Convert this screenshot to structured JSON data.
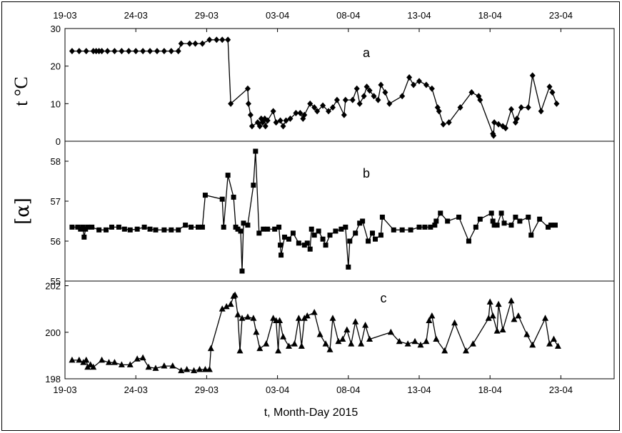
{
  "chart_data": {
    "type": "line",
    "xlabel": "t, Month-Day 2015",
    "x_ticks": [
      "19-03",
      "24-03",
      "29-03",
      "03-04",
      "08-04",
      "13-04",
      "18-04",
      "23-04"
    ],
    "x_tick_days": [
      0,
      5,
      10,
      15,
      20,
      25,
      30,
      35
    ],
    "x_range_days": [
      0,
      38.5
    ],
    "panels": [
      {
        "label": "a",
        "ylabel": "t °C",
        "ylim": [
          0,
          30
        ],
        "yticks": [
          0,
          10,
          20,
          30
        ],
        "marker": "diamond",
        "points": [
          [
            0.5,
            24
          ],
          [
            1,
            24
          ],
          [
            1.5,
            24
          ],
          [
            2,
            24
          ],
          [
            2.2,
            24
          ],
          [
            2.4,
            24
          ],
          [
            2.6,
            24
          ],
          [
            3,
            24
          ],
          [
            3.5,
            24
          ],
          [
            4,
            24
          ],
          [
            4.5,
            24
          ],
          [
            5,
            24
          ],
          [
            5.5,
            24
          ],
          [
            6,
            24
          ],
          [
            6.5,
            24
          ],
          [
            7,
            24
          ],
          [
            7.5,
            24
          ],
          [
            8,
            24
          ],
          [
            8.2,
            26
          ],
          [
            8.8,
            26
          ],
          [
            9.2,
            26
          ],
          [
            9.7,
            26
          ],
          [
            10.2,
            27
          ],
          [
            10.7,
            27
          ],
          [
            11.1,
            27
          ],
          [
            11.5,
            27
          ],
          [
            11.7,
            10
          ],
          [
            12.9,
            14
          ],
          [
            12.95,
            10
          ],
          [
            13.1,
            7
          ],
          [
            13.2,
            4
          ],
          [
            13.6,
            5
          ],
          [
            13.75,
            4
          ],
          [
            13.85,
            6
          ],
          [
            13.95,
            5
          ],
          [
            14.1,
            6
          ],
          [
            14.15,
            4
          ],
          [
            14.3,
            5.5
          ],
          [
            14.7,
            8
          ],
          [
            14.9,
            5
          ],
          [
            15.2,
            5.5
          ],
          [
            15.4,
            4
          ],
          [
            15.6,
            5.5
          ],
          [
            15.9,
            6
          ],
          [
            16.3,
            7.5
          ],
          [
            16.6,
            7.5
          ],
          [
            16.8,
            6
          ],
          [
            16.9,
            7
          ],
          [
            17.3,
            10
          ],
          [
            17.6,
            9
          ],
          [
            17.8,
            8
          ],
          [
            18.2,
            9.5
          ],
          [
            18.6,
            8
          ],
          [
            18.9,
            9
          ],
          [
            19.2,
            11
          ],
          [
            19.7,
            7
          ],
          [
            19.8,
            11
          ],
          [
            20.3,
            11
          ],
          [
            20.6,
            14
          ],
          [
            20.8,
            10
          ],
          [
            21.1,
            12
          ],
          [
            21.3,
            14.5
          ],
          [
            21.5,
            13.5
          ],
          [
            21.8,
            12
          ],
          [
            22.1,
            11
          ],
          [
            22.3,
            15
          ],
          [
            22.6,
            13
          ],
          [
            22.9,
            10
          ],
          [
            23.8,
            12
          ],
          [
            24.3,
            17
          ],
          [
            24.6,
            15
          ],
          [
            25,
            16
          ],
          [
            25.5,
            15
          ],
          [
            25.9,
            14
          ],
          [
            26.3,
            9
          ],
          [
            26.4,
            8
          ],
          [
            26.7,
            4.5
          ],
          [
            27.1,
            5
          ],
          [
            27.9,
            9
          ],
          [
            28.7,
            13
          ],
          [
            29.2,
            12
          ],
          [
            29.3,
            11
          ],
          [
            30.2,
            2
          ],
          [
            30.25,
            1.5
          ],
          [
            30.3,
            5
          ],
          [
            30.6,
            4.5
          ],
          [
            30.9,
            4
          ],
          [
            31.1,
            3.5
          ],
          [
            31.5,
            8.5
          ],
          [
            31.8,
            5
          ],
          [
            31.9,
            6
          ],
          [
            32.2,
            9
          ],
          [
            32.7,
            9
          ],
          [
            33,
            17.5
          ],
          [
            33.6,
            8
          ],
          [
            34.2,
            14.5
          ],
          [
            34.4,
            13
          ],
          [
            34.7,
            10
          ]
        ]
      },
      {
        "label": "b",
        "ylabel": "[α]",
        "ylim": [
          55,
          58.5
        ],
        "yticks": [
          55,
          56,
          57,
          58
        ],
        "marker": "square",
        "points": [
          [
            0.5,
            56.35
          ],
          [
            0.9,
            56.35
          ],
          [
            1.1,
            56.3
          ],
          [
            1.25,
            56.35
          ],
          [
            1.35,
            56.1
          ],
          [
            1.45,
            56.3
          ],
          [
            1.6,
            56.35
          ],
          [
            1.9,
            56.35
          ],
          [
            2.4,
            56.28
          ],
          [
            2.9,
            56.28
          ],
          [
            3.3,
            56.35
          ],
          [
            3.8,
            56.35
          ],
          [
            4.2,
            56.3
          ],
          [
            4.6,
            56.28
          ],
          [
            5.1,
            56.3
          ],
          [
            5.6,
            56.35
          ],
          [
            6,
            56.3
          ],
          [
            6.4,
            56.28
          ],
          [
            7,
            56.28
          ],
          [
            7.5,
            56.28
          ],
          [
            8,
            56.28
          ],
          [
            8.5,
            56.4
          ],
          [
            8.9,
            56.35
          ],
          [
            9.4,
            56.35
          ],
          [
            9.7,
            56.35
          ],
          [
            9.9,
            57.15
          ],
          [
            11.1,
            57.05
          ],
          [
            11.2,
            56.35
          ],
          [
            11.5,
            57.65
          ],
          [
            11.9,
            57.1
          ],
          [
            12.05,
            56.35
          ],
          [
            12.2,
            56.3
          ],
          [
            12.4,
            56.25
          ],
          [
            12.5,
            55.25
          ],
          [
            12.6,
            56.45
          ],
          [
            12.9,
            56.4
          ],
          [
            13.3,
            57.4
          ],
          [
            13.45,
            58.25
          ],
          [
            13.7,
            56.2
          ],
          [
            14,
            56.3
          ],
          [
            14.3,
            56.3
          ],
          [
            14.8,
            56.3
          ],
          [
            15.1,
            56.35
          ],
          [
            15.2,
            55.9
          ],
          [
            15.25,
            55.65
          ],
          [
            15.5,
            56.1
          ],
          [
            15.8,
            56.05
          ],
          [
            16.1,
            56.2
          ],
          [
            16.5,
            55.95
          ],
          [
            16.9,
            55.9
          ],
          [
            17.1,
            55.95
          ],
          [
            17.3,
            55.8
          ],
          [
            17.4,
            56.3
          ],
          [
            17.6,
            56.15
          ],
          [
            17.9,
            56.25
          ],
          [
            18.2,
            56.05
          ],
          [
            18.4,
            55.9
          ],
          [
            18.7,
            56.15
          ],
          [
            19.1,
            56.25
          ],
          [
            19.5,
            56.3
          ],
          [
            19.8,
            56.35
          ],
          [
            20.0,
            55.35
          ],
          [
            20.1,
            56
          ],
          [
            20.5,
            56.2
          ],
          [
            20.8,
            56.45
          ],
          [
            21.0,
            56.5
          ],
          [
            21.4,
            56
          ],
          [
            21.7,
            56.2
          ],
          [
            21.9,
            56.05
          ],
          [
            22.3,
            56.15
          ],
          [
            22.4,
            56.6
          ],
          [
            23.2,
            56.28
          ],
          [
            23.8,
            56.28
          ],
          [
            24.4,
            56.28
          ],
          [
            25.0,
            56.35
          ],
          [
            25.4,
            56.35
          ],
          [
            25.8,
            56.35
          ],
          [
            26.1,
            56.4
          ],
          [
            26.2,
            56.5
          ],
          [
            26.5,
            56.7
          ],
          [
            27.0,
            56.5
          ],
          [
            27.8,
            56.6
          ],
          [
            28.5,
            56
          ],
          [
            29,
            56.35
          ],
          [
            29.3,
            56.55
          ],
          [
            30.1,
            56.7
          ],
          [
            30.2,
            56.5
          ],
          [
            30.3,
            56.4
          ],
          [
            30.5,
            56.4
          ],
          [
            30.8,
            56.7
          ],
          [
            31.0,
            56.45
          ],
          [
            31.5,
            56.4
          ],
          [
            31.8,
            56.6
          ],
          [
            32.1,
            56.5
          ],
          [
            32.7,
            56.6
          ],
          [
            32.9,
            56.15
          ],
          [
            33.5,
            56.55
          ],
          [
            34.1,
            56.35
          ],
          [
            34.3,
            56.4
          ],
          [
            34.6,
            56.4
          ]
        ]
      },
      {
        "label": "c",
        "ylabel": "",
        "ylim": [
          198,
          202.2
        ],
        "yticks": [
          198,
          200,
          202
        ],
        "marker": "triangle",
        "points": [
          [
            0.5,
            198.8
          ],
          [
            1,
            198.8
          ],
          [
            1.3,
            198.7
          ],
          [
            1.5,
            198.8
          ],
          [
            1.6,
            198.5
          ],
          [
            1.8,
            198.6
          ],
          [
            2,
            198.5
          ],
          [
            2.6,
            198.8
          ],
          [
            3.1,
            198.7
          ],
          [
            3.5,
            198.7
          ],
          [
            4,
            198.6
          ],
          [
            4.6,
            198.6
          ],
          [
            5.1,
            198.85
          ],
          [
            5.5,
            198.9
          ],
          [
            5.9,
            198.5
          ],
          [
            6.4,
            198.45
          ],
          [
            7,
            198.55
          ],
          [
            7.6,
            198.55
          ],
          [
            8.2,
            198.35
          ],
          [
            8.6,
            198.4
          ],
          [
            9.1,
            198.35
          ],
          [
            9.5,
            198.4
          ],
          [
            9.9,
            198.4
          ],
          [
            10.2,
            198.4
          ],
          [
            10.3,
            199.3
          ],
          [
            11.1,
            201
          ],
          [
            11.4,
            201.1
          ],
          [
            11.7,
            201.2
          ],
          [
            11.9,
            201.55
          ],
          [
            12,
            201.6
          ],
          [
            12.2,
            200.75
          ],
          [
            12.35,
            199.2
          ],
          [
            12.5,
            200.6
          ],
          [
            12.9,
            200.65
          ],
          [
            13.3,
            200.6
          ],
          [
            13.5,
            200
          ],
          [
            13.75,
            199.3
          ],
          [
            14.2,
            199.5
          ],
          [
            14.7,
            200.6
          ],
          [
            14.9,
            200.5
          ],
          [
            15.05,
            199.2
          ],
          [
            15.15,
            200.5
          ],
          [
            15.4,
            199.8
          ],
          [
            15.8,
            199.4
          ],
          [
            16.2,
            199.5
          ],
          [
            16.5,
            200.6
          ],
          [
            16.7,
            199.4
          ],
          [
            16.9,
            200.6
          ],
          [
            17.1,
            200.7
          ],
          [
            17.6,
            200.85
          ],
          [
            18.0,
            199.9
          ],
          [
            18.4,
            199.5
          ],
          [
            18.7,
            199.25
          ],
          [
            18.9,
            200.6
          ],
          [
            19.3,
            199.6
          ],
          [
            19.6,
            199.7
          ],
          [
            19.9,
            200.1
          ],
          [
            20.2,
            199.5
          ],
          [
            20.5,
            200.45
          ],
          [
            20.9,
            199.5
          ],
          [
            21.2,
            200.3
          ],
          [
            21.5,
            199.7
          ],
          [
            23.0,
            200
          ],
          [
            23.6,
            199.6
          ],
          [
            24.2,
            199.5
          ],
          [
            24.7,
            199.6
          ],
          [
            25.1,
            199.45
          ],
          [
            25.5,
            199.6
          ],
          [
            25.7,
            200.5
          ],
          [
            25.9,
            200.7
          ],
          [
            26.2,
            199.7
          ],
          [
            26.8,
            199.2
          ],
          [
            27.5,
            200.4
          ],
          [
            28.3,
            199.2
          ],
          [
            28.8,
            199.5
          ],
          [
            29.9,
            200.6
          ],
          [
            30.0,
            201.3
          ],
          [
            30.2,
            200.7
          ],
          [
            30.5,
            200.05
          ],
          [
            30.6,
            201.2
          ],
          [
            30.9,
            200.1
          ],
          [
            31.5,
            201.35
          ],
          [
            31.7,
            200.55
          ],
          [
            32,
            200.7
          ],
          [
            32.6,
            199.9
          ],
          [
            33,
            199.45
          ],
          [
            33.9,
            200.6
          ],
          [
            34.2,
            199.5
          ],
          [
            34.5,
            199.7
          ],
          [
            34.8,
            199.4
          ]
        ]
      }
    ]
  }
}
